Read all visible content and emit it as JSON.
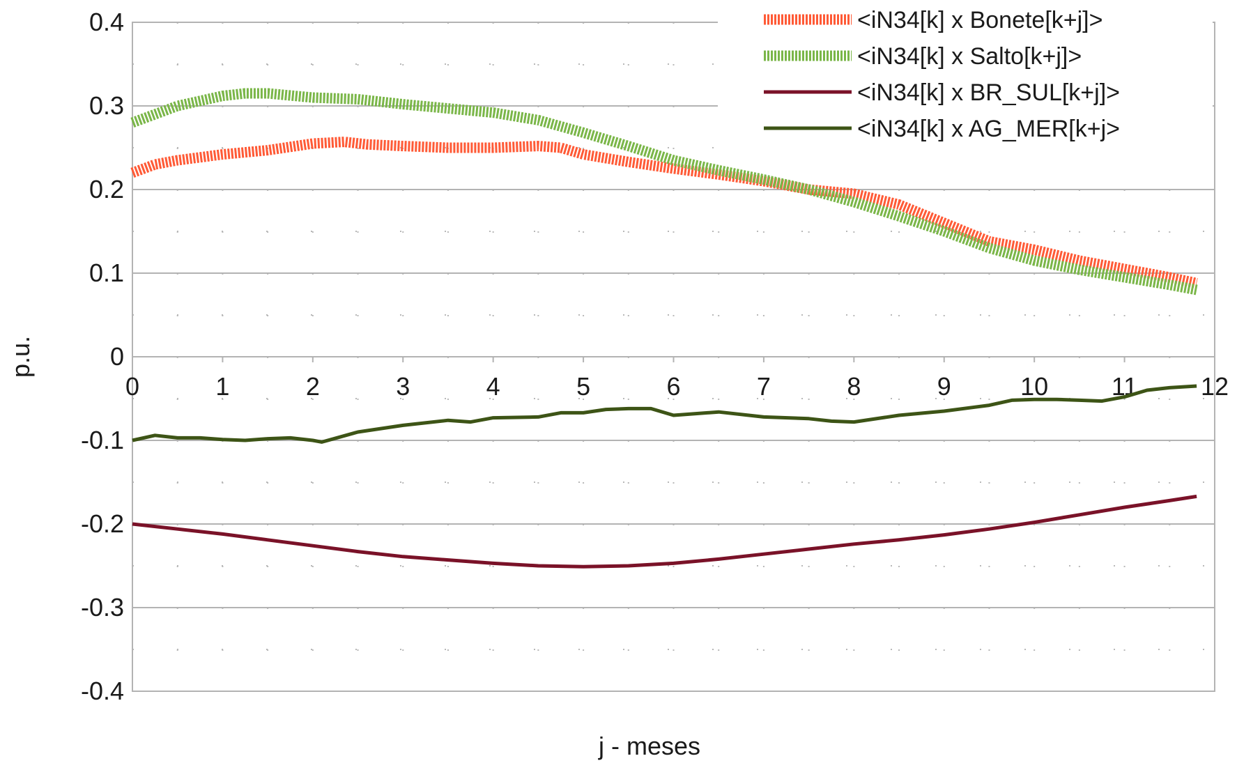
{
  "chart_data": {
    "type": "line",
    "title": "",
    "xlabel": "j - meses",
    "ylabel": "p.u.",
    "xlim": [
      0,
      12
    ],
    "ylim": [
      -0.4,
      0.4
    ],
    "x_ticks": [
      "0",
      "1",
      "2",
      "3",
      "4",
      "5",
      "6",
      "7",
      "8",
      "9",
      "10",
      "11",
      "12"
    ],
    "y_ticks": [
      "0.4",
      "0.3",
      "0.2",
      "0.1",
      "0",
      "-0.1",
      "-0.2",
      "-0.3",
      "-0.4"
    ],
    "grid": true,
    "legend_position": "top-right",
    "series": [
      {
        "name": "<iN34[k] x Bonete[k+j]>",
        "color": "#ff5a36",
        "style": "dotted-thick",
        "x": [
          0,
          0.25,
          0.5,
          1,
          1.5,
          2,
          2.35,
          2.6,
          3,
          3.5,
          4,
          4.5,
          4.75,
          5,
          5.5,
          6,
          6.5,
          7,
          7.5,
          8,
          8.5,
          9,
          9.5,
          10,
          10.5,
          11,
          11.5,
          11.8
        ],
        "y": [
          0.22,
          0.23,
          0.235,
          0.242,
          0.247,
          0.255,
          0.257,
          0.254,
          0.252,
          0.25,
          0.25,
          0.252,
          0.25,
          0.242,
          0.233,
          0.225,
          0.218,
          0.21,
          0.2,
          0.195,
          0.182,
          0.16,
          0.138,
          0.128,
          0.115,
          0.105,
          0.095,
          0.088
        ]
      },
      {
        "name": "<iN34[k] x Salto[k+j]>",
        "color": "#7ab648",
        "style": "dotted-thick",
        "x": [
          0,
          0.25,
          0.5,
          1,
          1.25,
          1.5,
          2,
          2.5,
          3,
          3.5,
          4,
          4.5,
          5,
          5.5,
          6,
          6.5,
          7,
          7.5,
          8,
          8.5,
          9,
          9.5,
          10,
          10.5,
          11,
          11.5,
          11.8
        ],
        "y": [
          0.28,
          0.29,
          0.3,
          0.312,
          0.315,
          0.315,
          0.31,
          0.308,
          0.302,
          0.297,
          0.292,
          0.283,
          0.268,
          0.252,
          0.235,
          0.223,
          0.212,
          0.2,
          0.185,
          0.168,
          0.15,
          0.13,
          0.115,
          0.104,
          0.095,
          0.086,
          0.08
        ]
      },
      {
        "name": "<iN34[k] x BR_SUL[k+j]>",
        "color": "#7a1228",
        "style": "solid",
        "x": [
          0,
          0.5,
          1,
          1.5,
          2,
          2.5,
          3,
          3.5,
          4,
          4.5,
          5,
          5.5,
          6,
          6.5,
          7,
          7.5,
          8,
          8.5,
          9,
          9.5,
          10,
          10.5,
          11,
          11.5,
          11.8
        ],
        "y": [
          -0.2,
          -0.206,
          -0.212,
          -0.219,
          -0.226,
          -0.233,
          -0.239,
          -0.243,
          -0.247,
          -0.25,
          -0.251,
          -0.25,
          -0.247,
          -0.242,
          -0.236,
          -0.23,
          -0.224,
          -0.219,
          -0.213,
          -0.206,
          -0.198,
          -0.189,
          -0.18,
          -0.172,
          -0.167
        ]
      },
      {
        "name": "<iN34[k] x AG_MER[k+j>",
        "color": "#3d5416",
        "style": "solid",
        "x": [
          0,
          0.25,
          0.5,
          0.75,
          1,
          1.25,
          1.5,
          1.75,
          2,
          2.1,
          2.5,
          3,
          3.5,
          3.75,
          4,
          4.5,
          4.75,
          5,
          5.25,
          5.5,
          5.75,
          6,
          6.5,
          7,
          7.5,
          7.75,
          8,
          8.5,
          9,
          9.5,
          9.75,
          10,
          10.25,
          10.5,
          10.75,
          11,
          11.25,
          11.5,
          11.8
        ],
        "y": [
          -0.1,
          -0.094,
          -0.097,
          -0.097,
          -0.099,
          -0.1,
          -0.098,
          -0.097,
          -0.1,
          -0.102,
          -0.09,
          -0.082,
          -0.076,
          -0.078,
          -0.073,
          -0.072,
          -0.067,
          -0.067,
          -0.063,
          -0.062,
          -0.062,
          -0.07,
          -0.066,
          -0.072,
          -0.074,
          -0.077,
          -0.078,
          -0.07,
          -0.065,
          -0.058,
          -0.052,
          -0.051,
          -0.051,
          -0.052,
          -0.053,
          -0.048,
          -0.04,
          -0.037,
          -0.035
        ]
      }
    ]
  }
}
